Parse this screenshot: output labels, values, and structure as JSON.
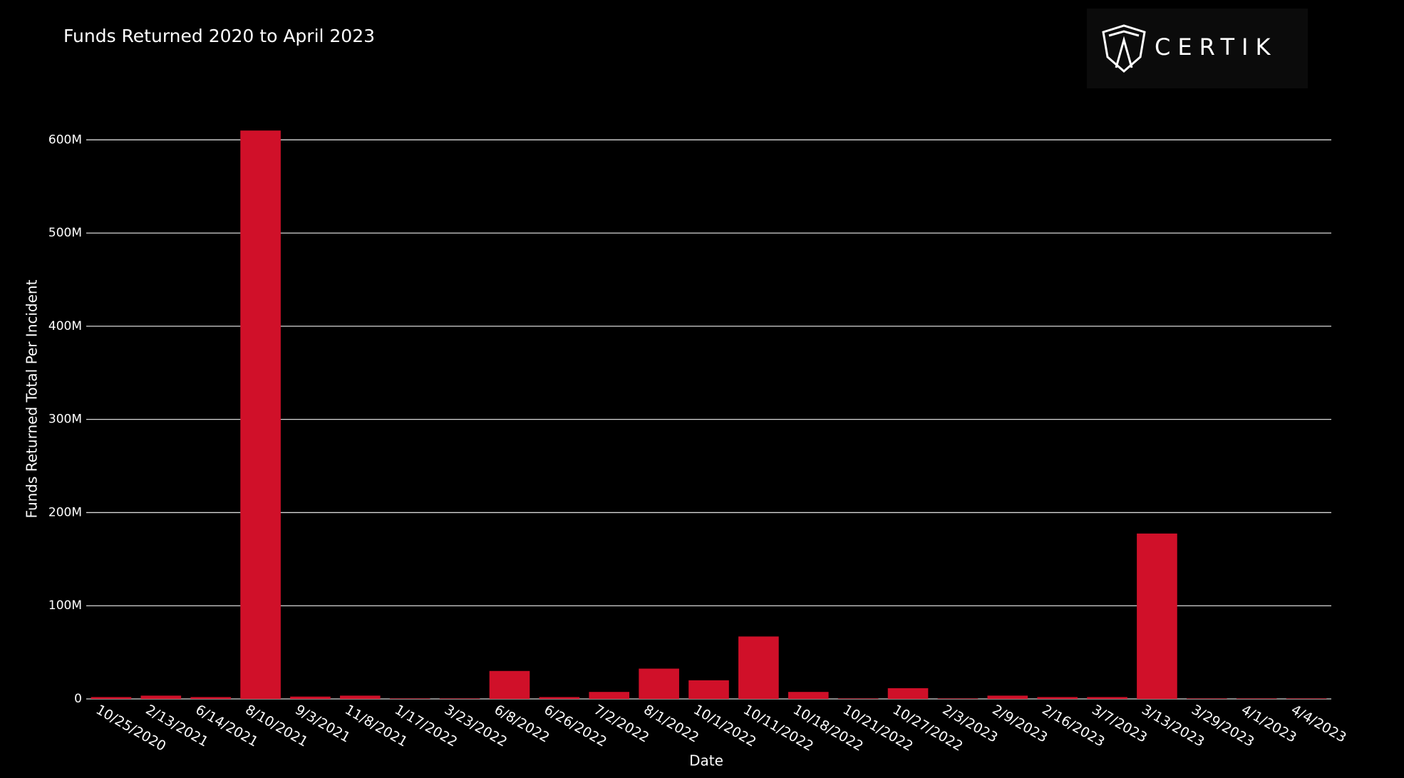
{
  "chart_data": {
    "type": "bar",
    "title": "Funds Returned 2020 to April 2023",
    "logo": "CERTIK",
    "x_label": "Date",
    "y_label": "Funds Returned Total Per Incident",
    "categories": [
      "10/25/2020",
      "2/13/2021",
      "6/14/2021",
      "8/10/2021",
      "9/3/2021",
      "11/8/2021",
      "1/17/2022",
      "3/23/2022",
      "6/8/2022",
      "6/26/2022",
      "7/2/2022",
      "8/1/2022",
      "10/1/2022",
      "10/11/2022",
      "10/18/2022",
      "10/21/2022",
      "10/27/2022",
      "2/3/2023",
      "2/9/2023",
      "2/16/2023",
      "3/7/2023",
      "3/13/2023",
      "3/29/2023",
      "4/1/2023",
      "4/4/2023"
    ],
    "values": [
      2000000,
      3500000,
      2000000,
      610000000,
      2500000,
      3500000,
      500000,
      500000,
      30000000,
      2000000,
      7500000,
      32500000,
      20000000,
      67000000,
      7500000,
      500000,
      11500000,
      500000,
      3500000,
      2000000,
      2000000,
      177500000,
      500000,
      500000,
      500000
    ],
    "color": "#d01029",
    "ylim": [
      0,
      640000000
    ],
    "yticks": [
      0,
      {
        "value": 100000000,
        "label": "100M"
      },
      {
        "value": 200000000,
        "label": "200M"
      },
      {
        "value": 300000000,
        "label": "300M"
      },
      {
        "value": 400000000,
        "label": "400M"
      },
      {
        "value": 500000000,
        "label": "500M"
      },
      {
        "value": 600000000,
        "label": "600M"
      }
    ],
    "grid": true
  }
}
